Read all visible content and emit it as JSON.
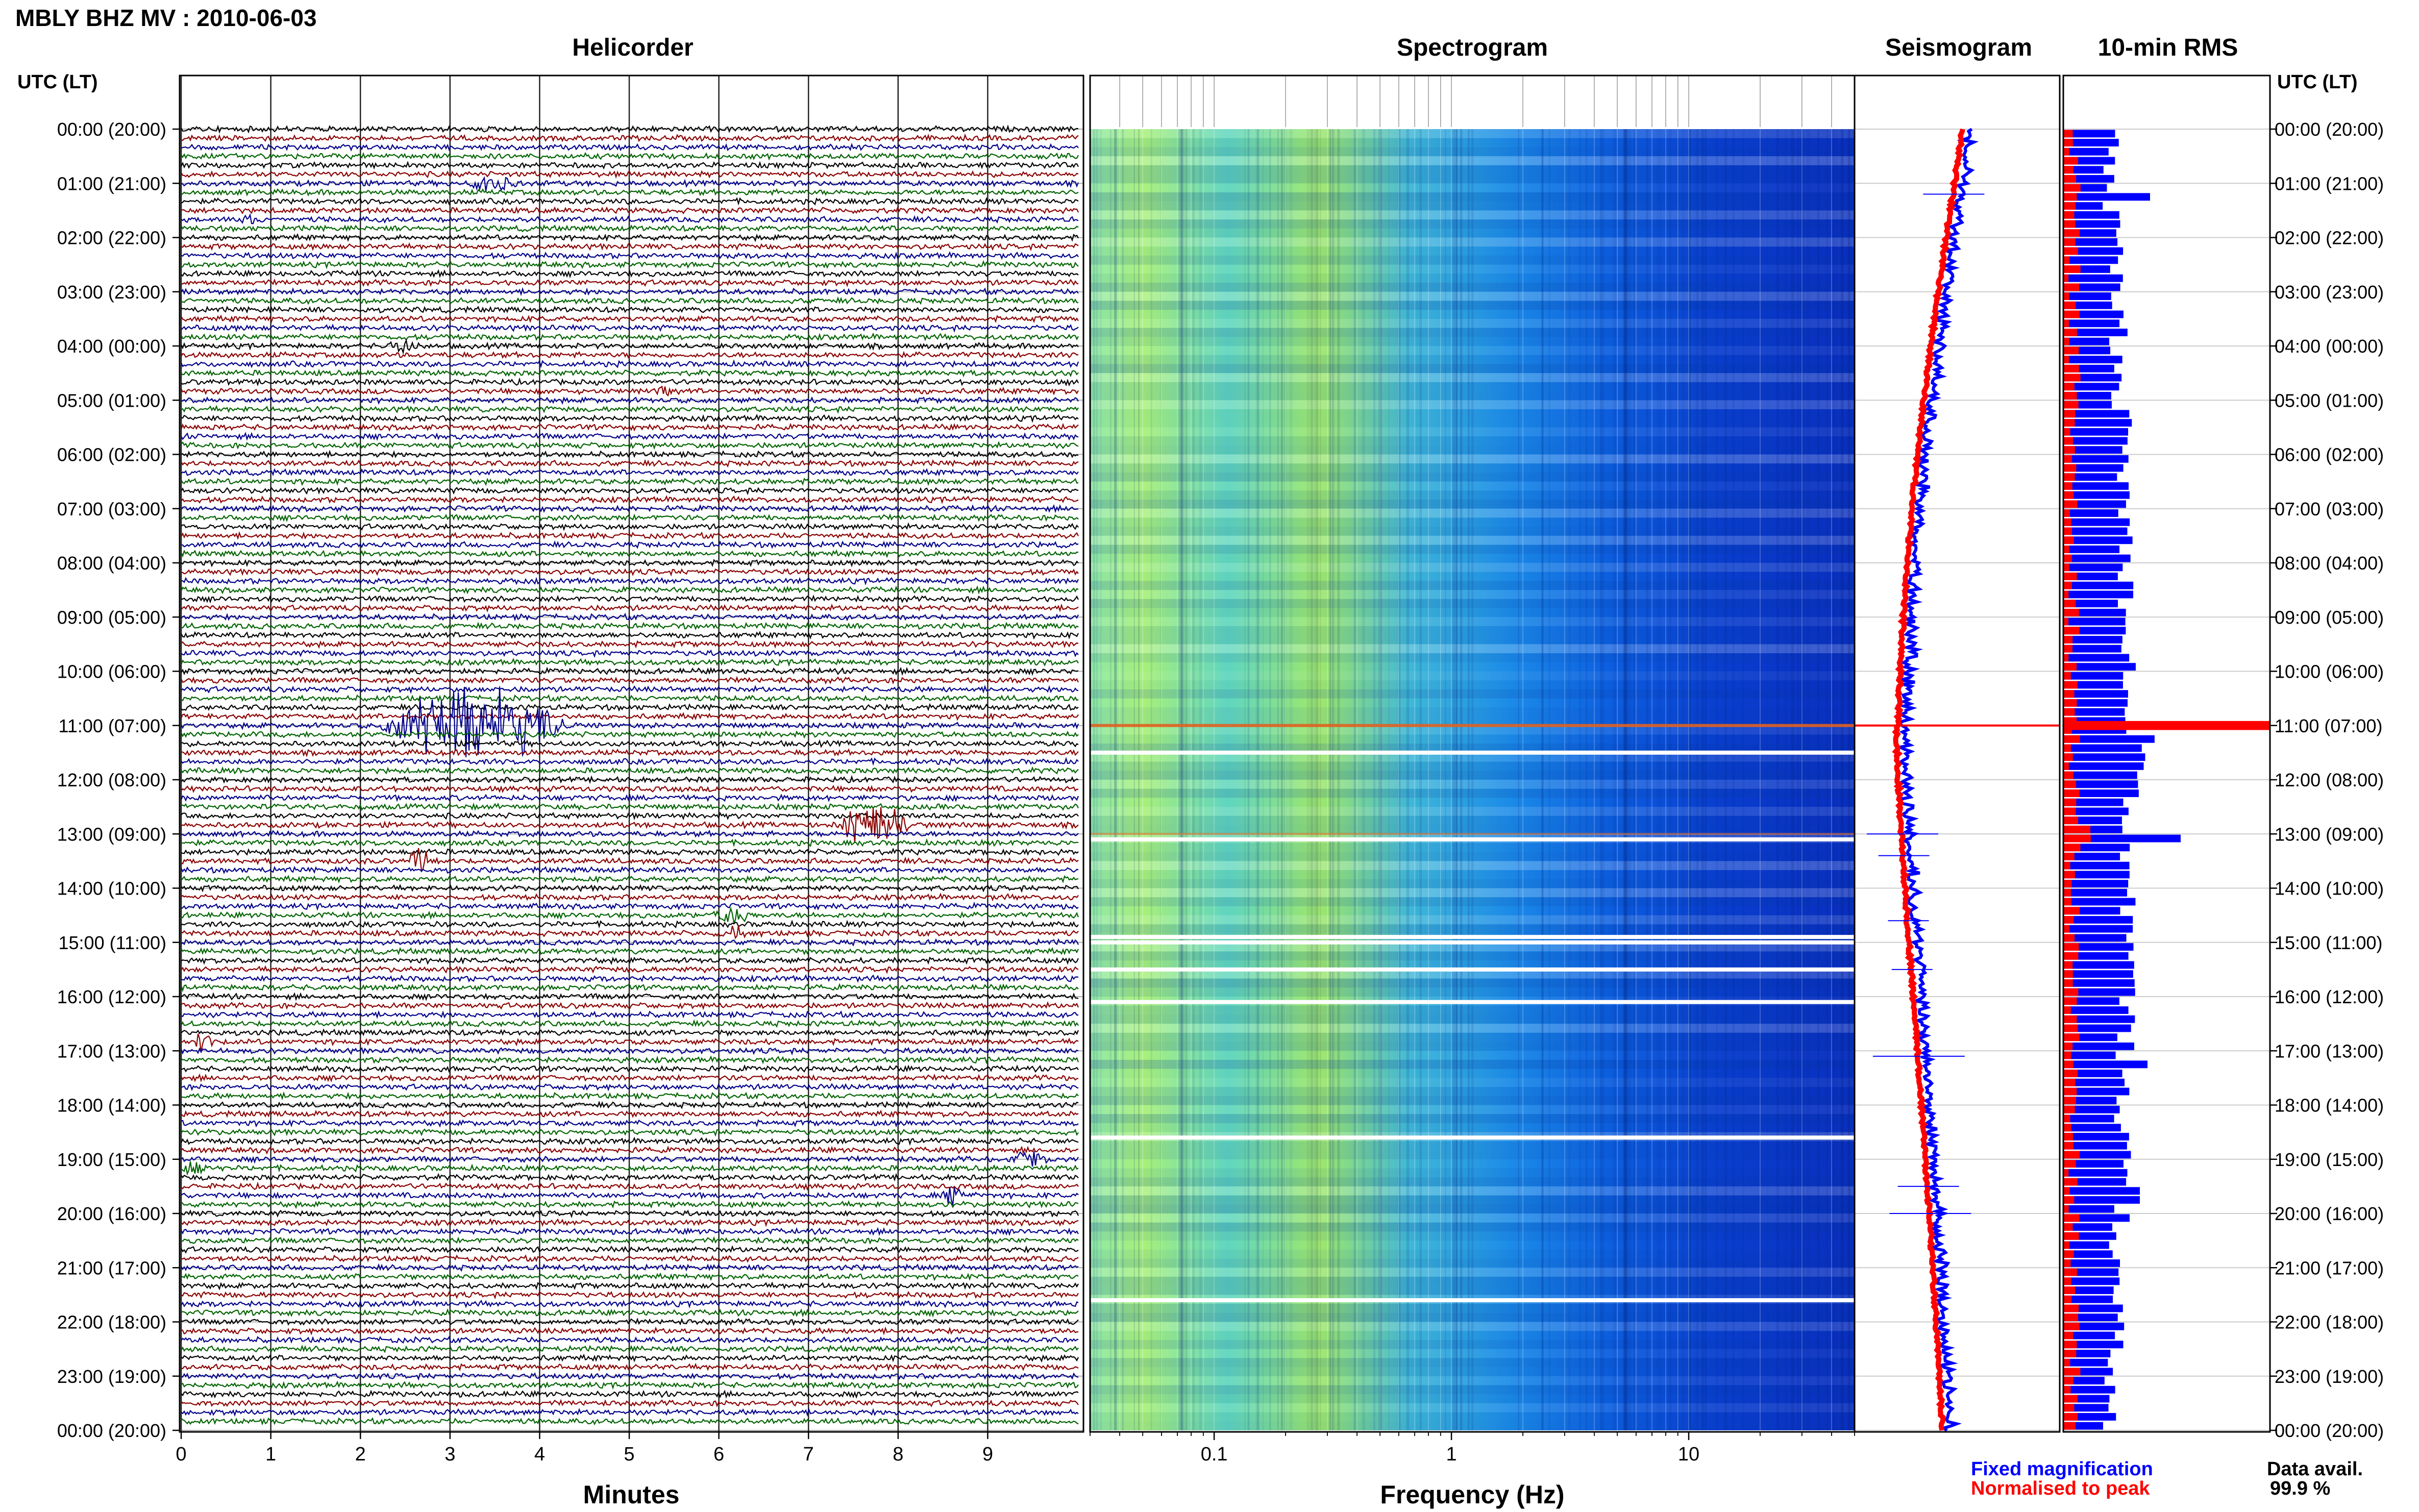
{
  "title": "MBLY BHZ MV : 2010-06-03",
  "panels": {
    "helicorder": "Helicorder",
    "spectrogram": "Spectrogram",
    "seismogram": "Seismogram",
    "rms": "10-min RMS"
  },
  "time_axis_header": "UTC (LT)",
  "time_labels": [
    "00:00 (20:00)",
    "01:00 (21:00)",
    "02:00 (22:00)",
    "03:00 (23:00)",
    "04:00 (00:00)",
    "05:00 (01:00)",
    "06:00 (02:00)",
    "07:00 (03:00)",
    "08:00 (04:00)",
    "09:00 (05:00)",
    "10:00 (06:00)",
    "11:00 (07:00)",
    "12:00 (08:00)",
    "13:00 (09:00)",
    "14:00 (10:00)",
    "15:00 (11:00)",
    "16:00 (12:00)",
    "17:00 (13:00)",
    "18:00 (14:00)",
    "19:00 (15:00)",
    "20:00 (16:00)",
    "21:00 (17:00)",
    "22:00 (18:00)",
    "23:00 (19:00)",
    "00:00 (20:00)"
  ],
  "legend": {
    "fixed": "Fixed magnification",
    "normalised": "Normalised to peak"
  },
  "data_availability": {
    "label": "Data avail.",
    "value": "99.9 %"
  },
  "colors": {
    "trace_cycle": [
      "#000000",
      "#8b0000",
      "#00008b",
      "#006400"
    ],
    "fixed": "#0000ff",
    "normalised": "#ff0000",
    "gap": "#ffffff"
  },
  "chart_data": [
    {
      "type": "line",
      "panel": "Helicorder",
      "xlabel": "Minutes",
      "xlim": [
        0,
        10
      ],
      "xticks": [
        0,
        1,
        2,
        3,
        4,
        5,
        6,
        7,
        8,
        9
      ],
      "ylabel": "UTC (LT)",
      "ylim_hours": [
        0,
        24
      ],
      "rows": 144,
      "row_minutes": 10,
      "grid": true,
      "events": [
        {
          "hour": 1,
          "row": 0,
          "minute": 3.2,
          "width_min": 0.9,
          "amp": 0.6
        },
        {
          "hour": 1,
          "row": 4,
          "minute": 0.6,
          "width_min": 0.4,
          "amp": 0.3
        },
        {
          "hour": 4,
          "row": 0,
          "minute": 2.3,
          "width_min": 0.6,
          "amp": 0.4
        },
        {
          "hour": 4,
          "row": 5,
          "minute": 5.3,
          "width_min": 0.3,
          "amp": 0.2
        },
        {
          "hour": 6,
          "row": 3,
          "minute": 7.0,
          "width_min": 0.3,
          "amp": 0.2
        },
        {
          "hour": 11,
          "row": 0,
          "minute": 2.2,
          "width_min": 3.5,
          "amp": 2.5
        },
        {
          "hour": 12,
          "row": 5,
          "minute": 7.3,
          "width_min": 1.4,
          "amp": 1.5
        },
        {
          "hour": 13,
          "row": 3,
          "minute": 2.5,
          "width_min": 0.5,
          "amp": 0.8
        },
        {
          "hour": 14,
          "row": 3,
          "minute": 5.9,
          "width_min": 0.8,
          "amp": 0.5
        },
        {
          "hour": 14,
          "row": 5,
          "minute": 6.0,
          "width_min": 0.5,
          "amp": 0.4
        },
        {
          "hour": 16,
          "row": 5,
          "minute": 0.1,
          "width_min": 0.4,
          "amp": 1.2
        },
        {
          "hour": 19,
          "row": 0,
          "minute": 9.3,
          "width_min": 0.6,
          "amp": 0.6
        },
        {
          "hour": 19,
          "row": 1,
          "minute": 0.0,
          "width_min": 0.5,
          "amp": 0.4
        },
        {
          "hour": 19,
          "row": 4,
          "minute": 8.5,
          "width_min": 0.4,
          "amp": 0.6
        }
      ]
    },
    {
      "type": "heatmap",
      "panel": "Spectrogram",
      "xlabel": "Frequency (Hz)",
      "xscale": "log",
      "xlim": [
        0.03,
        50
      ],
      "xticks": [
        0.1,
        1,
        10
      ],
      "gaps_hours": [
        11.5,
        13.1,
        14.9,
        15.0,
        15.5,
        16.1,
        18.6,
        21.6
      ]
    },
    {
      "type": "line",
      "panel": "Seismogram",
      "series": [
        {
          "name": "Fixed magnification",
          "color": "#0000ff"
        },
        {
          "name": "Normalised to peak",
          "color": "#ff0000"
        }
      ],
      "spike_hour": 11.0
    },
    {
      "type": "bar",
      "panel": "10-min RMS",
      "orientation": "horizontal",
      "bins_per_hour": 6,
      "peak_hour": 11.0,
      "series": [
        {
          "name": "Fixed magnification",
          "color": "#0000ff"
        },
        {
          "name": "Normalised to peak",
          "color": "#ff0000"
        }
      ]
    }
  ]
}
